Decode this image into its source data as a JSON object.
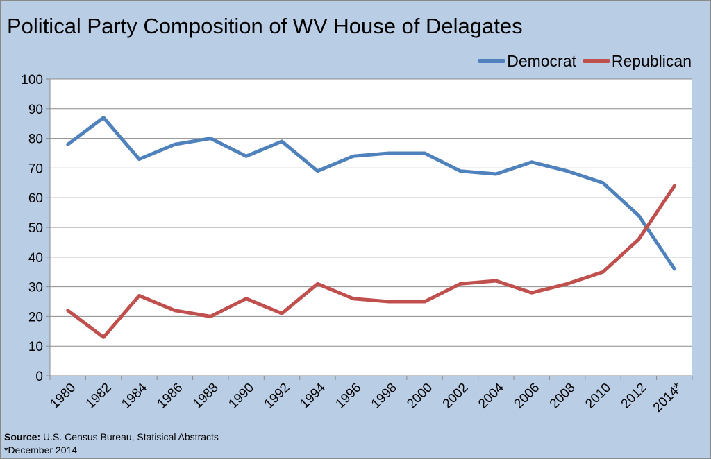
{
  "chart_data": {
    "type": "line",
    "title": "Political Party Composition of WV House of Delagates",
    "categories": [
      "1980",
      "1982",
      "1984",
      "1986",
      "1988",
      "1990",
      "1992",
      "1994",
      "1996",
      "1998",
      "2000",
      "2002",
      "2004",
      "2006",
      "2008",
      "2010",
      "2012",
      "2014*"
    ],
    "series": [
      {
        "name": "Democrat",
        "color": "#4f81bd",
        "values": [
          78,
          87,
          73,
          78,
          80,
          74,
          79,
          69,
          74,
          75,
          75,
          69,
          68,
          72,
          69,
          65,
          54,
          36
        ]
      },
      {
        "name": "Republican",
        "color": "#c0504d",
        "values": [
          22,
          13,
          27,
          22,
          20,
          26,
          21,
          31,
          26,
          25,
          25,
          31,
          32,
          28,
          31,
          35,
          46,
          64
        ]
      }
    ],
    "ylim": [
      0,
      100
    ],
    "yticks": [
      0,
      10,
      20,
      30,
      40,
      50,
      60,
      70,
      80,
      90,
      100
    ],
    "grid": true,
    "legend_position": "top-right",
    "xlabel": "",
    "ylabel": ""
  },
  "source": {
    "label": "Source:",
    "text": "U.S. Census Bureau, Statisical Abstracts",
    "note": "*December 2014"
  }
}
